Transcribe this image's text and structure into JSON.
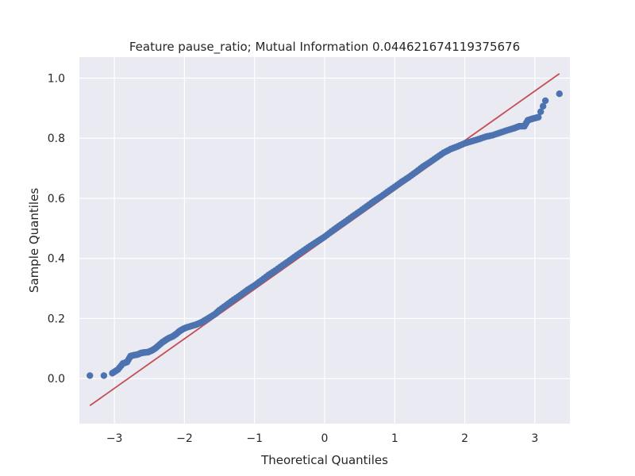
{
  "chart_data": {
    "type": "scatter",
    "title": "Feature pause_ratio; Mutual Information 0.044621674119375676",
    "xlabel": "Theoretical Quantiles",
    "ylabel": "Sample Quantiles",
    "xlim": [
      -3.5,
      3.5
    ],
    "ylim": [
      -0.15,
      1.07
    ],
    "xticks": [
      -3,
      -2,
      -1,
      0,
      1,
      2,
      3
    ],
    "yticks": [
      0.0,
      0.2,
      0.4,
      0.6,
      0.8,
      1.0
    ],
    "xtick_labels": [
      "−3",
      "−2",
      "−1",
      "0",
      "1",
      "2",
      "3"
    ],
    "ytick_labels": [
      "0.0",
      "0.2",
      "0.4",
      "0.6",
      "0.8",
      "1.0"
    ],
    "grid": true,
    "background_color": "#eaeaf2",
    "grid_color": "#ffffff",
    "point_color": "#4c72b0",
    "line_color": "#c44e52",
    "reference_line": {
      "x": [
        -3.35,
        3.35
      ],
      "y": [
        -0.09,
        1.015
      ]
    },
    "series": [
      {
        "points": [
          [
            -3.35,
            0.01
          ],
          [
            -3.15,
            0.01
          ],
          [
            -3.03,
            0.018
          ],
          [
            -2.95,
            0.03
          ],
          [
            -2.88,
            0.05
          ],
          [
            -2.82,
            0.055
          ],
          [
            -2.77,
            0.075
          ],
          [
            -2.72,
            0.078
          ],
          [
            -2.67,
            0.08
          ],
          [
            -2.62,
            0.085
          ],
          [
            -2.57,
            0.087
          ],
          [
            -2.52,
            0.088
          ],
          [
            -2.47,
            0.093
          ],
          [
            -2.42,
            0.1
          ],
          [
            -2.37,
            0.11
          ],
          [
            -2.32,
            0.12
          ],
          [
            -2.27,
            0.128
          ],
          [
            -2.22,
            0.135
          ],
          [
            -2.17,
            0.14
          ],
          [
            -2.12,
            0.148
          ],
          [
            -2.07,
            0.158
          ],
          [
            -2.02,
            0.165
          ],
          [
            -1.97,
            0.17
          ],
          [
            -1.9,
            0.175
          ],
          [
            -1.83,
            0.18
          ],
          [
            -1.76,
            0.187
          ],
          [
            -1.7,
            0.195
          ],
          [
            -1.63,
            0.205
          ],
          [
            -1.56,
            0.215
          ],
          [
            -1.5,
            0.228
          ],
          [
            -1.4,
            0.245
          ],
          [
            -1.3,
            0.262
          ],
          [
            -1.2,
            0.278
          ],
          [
            -1.1,
            0.295
          ],
          [
            -1.0,
            0.31
          ],
          [
            -0.9,
            0.327
          ],
          [
            -0.8,
            0.345
          ],
          [
            -0.7,
            0.36
          ],
          [
            -0.6,
            0.377
          ],
          [
            -0.5,
            0.393
          ],
          [
            -0.4,
            0.41
          ],
          [
            -0.3,
            0.426
          ],
          [
            -0.2,
            0.442
          ],
          [
            -0.1,
            0.457
          ],
          [
            0.0,
            0.472
          ],
          [
            0.1,
            0.49
          ],
          [
            0.2,
            0.507
          ],
          [
            0.3,
            0.523
          ],
          [
            0.4,
            0.54
          ],
          [
            0.5,
            0.556
          ],
          [
            0.6,
            0.573
          ],
          [
            0.7,
            0.59
          ],
          [
            0.8,
            0.605
          ],
          [
            0.9,
            0.622
          ],
          [
            1.0,
            0.638
          ],
          [
            1.1,
            0.655
          ],
          [
            1.2,
            0.67
          ],
          [
            1.3,
            0.687
          ],
          [
            1.4,
            0.705
          ],
          [
            1.5,
            0.72
          ],
          [
            1.6,
            0.736
          ],
          [
            1.7,
            0.752
          ],
          [
            1.8,
            0.764
          ],
          [
            1.9,
            0.773
          ],
          [
            2.0,
            0.783
          ],
          [
            2.1,
            0.79
          ],
          [
            2.2,
            0.797
          ],
          [
            2.3,
            0.805
          ],
          [
            2.4,
            0.81
          ],
          [
            2.5,
            0.818
          ],
          [
            2.6,
            0.826
          ],
          [
            2.7,
            0.833
          ],
          [
            2.78,
            0.84
          ],
          [
            2.85,
            0.84
          ],
          [
            2.9,
            0.86
          ],
          [
            2.97,
            0.865
          ],
          [
            3.05,
            0.87
          ],
          [
            3.15,
            0.925
          ],
          [
            3.35,
            0.948
          ]
        ]
      }
    ]
  }
}
